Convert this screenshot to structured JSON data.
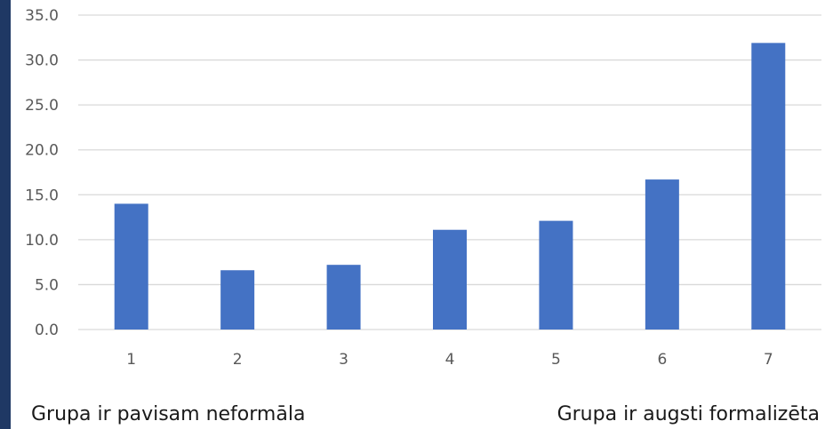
{
  "chart_data": {
    "type": "bar",
    "categories": [
      "1",
      "2",
      "3",
      "4",
      "5",
      "6",
      "7"
    ],
    "values": [
      14.0,
      6.6,
      7.2,
      11.1,
      12.1,
      16.7,
      31.9
    ],
    "ylim": [
      0,
      35
    ],
    "yticks": [
      "0.0",
      "5.0",
      "10.0",
      "15.0",
      "20.0",
      "25.0",
      "30.0",
      "35.0"
    ],
    "grid": true,
    "bar_color": "#4472c4"
  },
  "captions": {
    "left": "Grupa ir pavisam neformāla",
    "right": "Grupa ir augsti formalizēta"
  },
  "colors": {
    "accent_strip": "#1f3864"
  }
}
